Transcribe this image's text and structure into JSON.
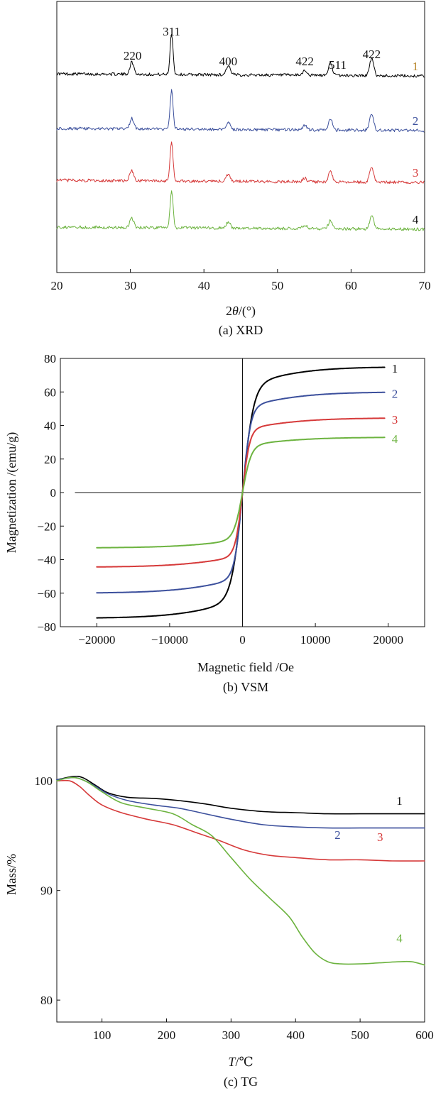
{
  "chart_data": [
    {
      "type": "line",
      "id": "xrd",
      "title": "(a) XRD",
      "xlabel_prefix": "2",
      "xlabel_theta": "θ",
      "xlabel_suffix": "/(°)",
      "ylabel": "",
      "xlim": [
        20,
        70
      ],
      "xticks": [
        20,
        30,
        40,
        50,
        60,
        70
      ],
      "peak_labels": [
        {
          "text": "220",
          "x": 30.2
        },
        {
          "text": "311",
          "x": 35.6
        },
        {
          "text": "400",
          "x": 43.3
        },
        {
          "text": "422",
          "x": 53.7
        },
        {
          "text": "511",
          "x": 57.2
        },
        {
          "text": "422",
          "x": 62.8
        }
      ],
      "series": [
        {
          "name": "1",
          "color": "#000000",
          "label_color": "#b8862b",
          "baseline": 0,
          "peaks": [
            [
              30.2,
              17
            ],
            [
              35.6,
              58
            ],
            [
              43.3,
              13
            ],
            [
              53.7,
              7
            ],
            [
              57.2,
              17
            ],
            [
              62.8,
              24
            ]
          ]
        },
        {
          "name": "2",
          "color": "#3b4f9c",
          "label_color": "#3b4f9c",
          "baseline": -77,
          "peaks": [
            [
              30.2,
              15
            ],
            [
              35.6,
              54
            ],
            [
              43.3,
              11
            ],
            [
              53.7,
              6
            ],
            [
              57.2,
              15
            ],
            [
              62.8,
              24
            ]
          ]
        },
        {
          "name": "3",
          "color": "#d63a3a",
          "label_color": "#d63a3a",
          "baseline": -150,
          "peaks": [
            [
              30.2,
              14
            ],
            [
              35.6,
              54
            ],
            [
              43.3,
              10
            ],
            [
              53.7,
              5
            ],
            [
              57.2,
              14
            ],
            [
              62.8,
              21
            ]
          ]
        },
        {
          "name": "4",
          "color": "#6cb33f",
          "label_color": "#111111",
          "baseline": -216,
          "peaks": [
            [
              30.2,
              13
            ],
            [
              35.6,
              52
            ],
            [
              43.3,
              9
            ],
            [
              53.7,
              5
            ],
            [
              57.2,
              12
            ],
            [
              62.8,
              18
            ]
          ]
        }
      ]
    },
    {
      "type": "line",
      "id": "vsm",
      "title": "(b) VSM",
      "xlabel": "Magnetic field /Oe",
      "ylabel": "Magnetization /(emu/g)",
      "xlim": [
        -25000,
        25000
      ],
      "ylim": [
        -80,
        80
      ],
      "xticks": [
        -20000,
        -10000,
        0,
        10000,
        20000
      ],
      "xtick_labels": [
        "−20000",
        "−10000",
        "0",
        "10000",
        "20000"
      ],
      "yticks": [
        -80,
        -60,
        -40,
        -20,
        0,
        20,
        40,
        60,
        80
      ],
      "ytick_labels": [
        "−80",
        "−60",
        "−40",
        "−20",
        "0",
        "20",
        "40",
        "60",
        "80"
      ],
      "series": [
        {
          "name": "1",
          "color": "#000000",
          "label_color": "#111111",
          "ms": 75,
          "h0": 1500
        },
        {
          "name": "2",
          "color": "#3b4f9c",
          "label_color": "#3b4f9c",
          "ms": 60,
          "h0": 1100
        },
        {
          "name": "3",
          "color": "#d63a3a",
          "label_color": "#d63a3a",
          "ms": 44.5,
          "h0": 1000
        },
        {
          "name": "4",
          "color": "#6cb33f",
          "label_color": "#6cb33f",
          "ms": 33,
          "h0": 1200
        }
      ]
    },
    {
      "type": "line",
      "id": "tg",
      "title": "(c) TG",
      "xlabel_var": "T",
      "xlabel_unit": "/℃",
      "ylabel": "Mass/%",
      "xlim": [
        30,
        600
      ],
      "ylim": [
        78,
        105
      ],
      "xticks": [
        100,
        200,
        300,
        400,
        500,
        600
      ],
      "yticks": [
        80,
        90,
        100
      ],
      "series": [
        {
          "name": "1",
          "color": "#000000",
          "label_color": "#111111",
          "label_at": [
            561,
            97.8
          ],
          "x": [
            30,
            55,
            70,
            90,
            110,
            140,
            180,
            220,
            260,
            300,
            350,
            400,
            450,
            500,
            550,
            600
          ],
          "y": [
            100.1,
            100.4,
            100.3,
            99.6,
            98.9,
            98.5,
            98.4,
            98.2,
            97.9,
            97.5,
            97.2,
            97.1,
            97.0,
            97.0,
            97.0,
            97.0
          ]
        },
        {
          "name": "2",
          "color": "#3b4f9c",
          "label_color": "#3b4f9c",
          "label_at": [
            465,
            94.7
          ],
          "x": [
            30,
            55,
            70,
            90,
            110,
            140,
            180,
            220,
            260,
            300,
            350,
            400,
            450,
            500,
            550,
            600
          ],
          "y": [
            100.1,
            100.3,
            100.1,
            99.5,
            98.8,
            98.2,
            97.8,
            97.5,
            97.0,
            96.5,
            96.0,
            95.8,
            95.7,
            95.7,
            95.7,
            95.7
          ]
        },
        {
          "name": "3",
          "color": "#d63a3a",
          "label_color": "#d63a3a",
          "label_at": [
            531,
            94.5
          ],
          "x": [
            30,
            50,
            65,
            80,
            100,
            130,
            170,
            210,
            250,
            280,
            320,
            360,
            400,
            450,
            500,
            550,
            600
          ],
          "y": [
            100.0,
            100.0,
            99.5,
            98.7,
            97.8,
            97.1,
            96.5,
            96.0,
            95.2,
            94.6,
            93.7,
            93.2,
            93.0,
            92.8,
            92.8,
            92.7,
            92.7
          ]
        },
        {
          "name": "4",
          "color": "#6cb33f",
          "label_color": "#6cb33f",
          "label_at": [
            561,
            85.3
          ],
          "x": [
            30,
            50,
            65,
            80,
            100,
            130,
            170,
            210,
            240,
            270,
            300,
            330,
            360,
            390,
            410,
            430,
            450,
            470,
            500,
            530,
            560,
            580,
            600
          ],
          "y": [
            100.0,
            100.3,
            100.2,
            99.8,
            99.0,
            98.0,
            97.5,
            97.0,
            96.0,
            95.0,
            93.0,
            91.0,
            89.3,
            87.6,
            85.8,
            84.3,
            83.5,
            83.3,
            83.3,
            83.4,
            83.5,
            83.5,
            83.2
          ]
        }
      ]
    }
  ]
}
